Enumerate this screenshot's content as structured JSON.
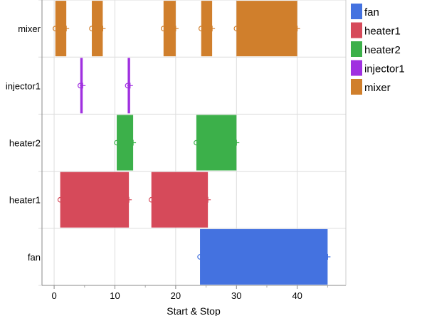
{
  "chart_data": {
    "type": "gantt",
    "xlabel": "Start & Stop",
    "xlim": [
      -2,
      48
    ],
    "xticks": [
      0,
      10,
      20,
      30,
      40
    ],
    "grid": true,
    "legend_position": "right",
    "categories": [
      "mixer",
      "injector1",
      "heater2",
      "heater1",
      "fan"
    ],
    "series": [
      {
        "name": "fan",
        "color": "#4472e0",
        "intervals": [
          [
            24,
            45
          ]
        ]
      },
      {
        "name": "heater1",
        "color": "#d64a5a",
        "intervals": [
          [
            1,
            12.3
          ],
          [
            16,
            25.3
          ]
        ]
      },
      {
        "name": "heater2",
        "color": "#3cb04a",
        "intervals": [
          [
            10.3,
            13
          ],
          [
            23.4,
            30
          ]
        ]
      },
      {
        "name": "injector1",
        "color": "#a030e0",
        "intervals": [
          [
            4.3,
            4.7
          ],
          [
            12.1,
            12.5
          ]
        ]
      },
      {
        "name": "mixer",
        "color": "#d07f2c",
        "intervals": [
          [
            0.2,
            2
          ],
          [
            6.2,
            8
          ],
          [
            18,
            20
          ],
          [
            24.2,
            26
          ],
          [
            30,
            40
          ]
        ]
      }
    ]
  }
}
